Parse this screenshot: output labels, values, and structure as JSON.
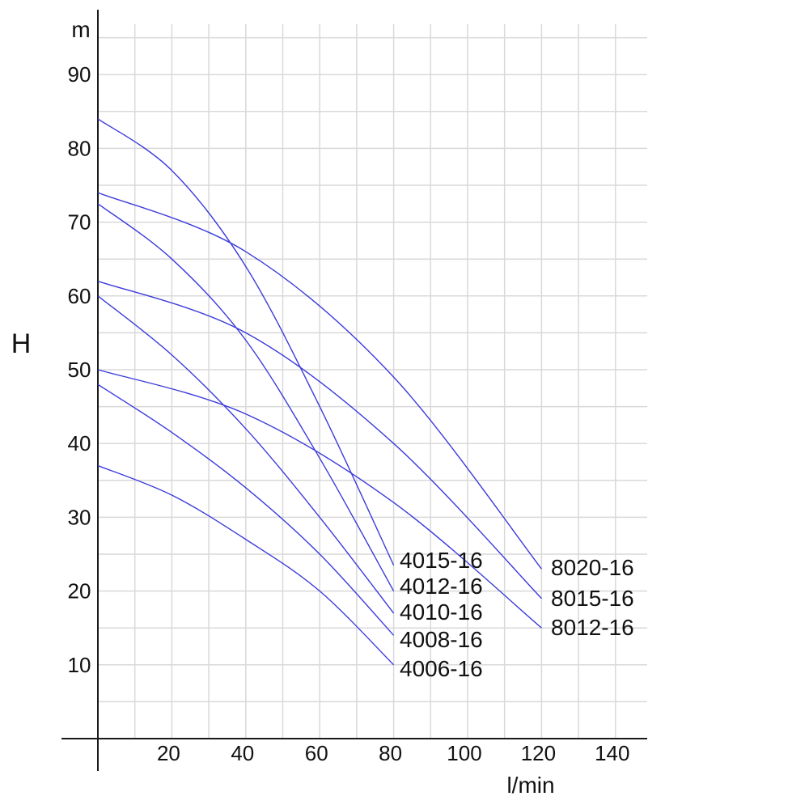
{
  "chart_data": {
    "type": "line",
    "title": "",
    "xlabel": "l/min",
    "ylabel": "H",
    "yunit": "m",
    "xlim": [
      0,
      148
    ],
    "ylim": [
      0,
      98
    ],
    "x_ticks": [
      20,
      40,
      60,
      80,
      100,
      120,
      140
    ],
    "y_ticks": [
      10,
      20,
      30,
      40,
      50,
      60,
      70,
      80,
      90
    ],
    "grid": true,
    "line_color": "#3b3bdc",
    "series": [
      {
        "name": "4015-16",
        "x": [
          0,
          20,
          40,
          60,
          80
        ],
        "y": [
          84,
          77,
          64,
          45,
          23.5
        ]
      },
      {
        "name": "4012-16",
        "x": [
          0,
          20,
          40,
          60,
          80
        ],
        "y": [
          72.5,
          65,
          54,
          38,
          20
        ]
      },
      {
        "name": "4010-16",
        "x": [
          0,
          20,
          40,
          60,
          80
        ],
        "y": [
          60,
          52,
          42,
          30,
          17
        ]
      },
      {
        "name": "4008-16",
        "x": [
          0,
          20,
          40,
          60,
          80
        ],
        "y": [
          48,
          41.5,
          34,
          25,
          14
        ]
      },
      {
        "name": "4006-16",
        "x": [
          0,
          20,
          40,
          60,
          80
        ],
        "y": [
          37,
          33,
          27,
          20,
          10
        ]
      },
      {
        "name": "8020-16",
        "x": [
          0,
          40,
          80,
          120
        ],
        "y": [
          74,
          66,
          49,
          23
        ]
      },
      {
        "name": "8015-16",
        "x": [
          0,
          40,
          80,
          120
        ],
        "y": [
          62,
          55,
          40,
          19
        ]
      },
      {
        "name": "8012-16",
        "x": [
          0,
          40,
          80,
          120
        ],
        "y": [
          50,
          44,
          32,
          15
        ]
      }
    ]
  }
}
